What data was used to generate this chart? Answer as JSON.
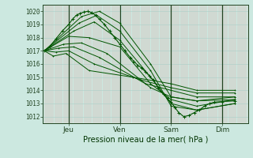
{
  "xlabel": "Pression niveau de la mer( hPa )",
  "ylim": [
    1011.5,
    1020.5
  ],
  "yticks": [
    1012,
    1013,
    1014,
    1015,
    1016,
    1017,
    1018,
    1019,
    1020
  ],
  "day_labels": [
    "Jeu",
    "Ven",
    "Sam",
    "Dim"
  ],
  "day_ticks": [
    1,
    3,
    5,
    7
  ],
  "xlim": [
    0,
    8
  ],
  "bg_color": "#cce8e0",
  "line_color": "#005500",
  "lines": [
    {
      "x": [
        0.05,
        1.5,
        2.2,
        3.0,
        4.2,
        5.0,
        6.0,
        7.5
      ],
      "y": [
        1017.0,
        1019.6,
        1020.0,
        1019.1,
        1016.0,
        1013.5,
        1013.2,
        1013.3
      ]
    },
    {
      "x": [
        0.05,
        1.4,
        2.1,
        3.0,
        4.2,
        5.0,
        6.0,
        7.5
      ],
      "y": [
        1017.0,
        1019.1,
        1019.7,
        1018.5,
        1015.5,
        1012.8,
        1012.5,
        1013.0
      ]
    },
    {
      "x": [
        0.05,
        1.2,
        2.0,
        3.0,
        4.2,
        5.0,
        6.0,
        7.5
      ],
      "y": [
        1017.0,
        1018.5,
        1019.2,
        1017.8,
        1015.0,
        1013.0,
        1012.5,
        1013.0
      ]
    },
    {
      "x": [
        0.05,
        1.0,
        1.8,
        3.0,
        4.2,
        5.0,
        6.0,
        7.5
      ],
      "y": [
        1017.0,
        1018.1,
        1018.0,
        1017.3,
        1014.5,
        1013.3,
        1012.8,
        1013.3
      ]
    },
    {
      "x": [
        0.05,
        0.8,
        1.5,
        2.5,
        4.2,
        5.0,
        6.0,
        7.5
      ],
      "y": [
        1017.0,
        1017.5,
        1017.6,
        1016.8,
        1014.2,
        1013.5,
        1013.2,
        1013.5
      ]
    },
    {
      "x": [
        0.05,
        0.6,
        1.2,
        2.2,
        4.0,
        5.0,
        6.0,
        7.5
      ],
      "y": [
        1017.0,
        1017.2,
        1017.3,
        1016.5,
        1014.5,
        1014.0,
        1013.5,
        1013.5
      ]
    },
    {
      "x": [
        0.05,
        0.5,
        1.0,
        2.0,
        3.8,
        5.0,
        6.0,
        7.5
      ],
      "y": [
        1017.0,
        1016.9,
        1017.0,
        1016.0,
        1014.8,
        1014.2,
        1013.8,
        1013.8
      ]
    },
    {
      "x": [
        0.05,
        0.4,
        0.9,
        1.8,
        3.5,
        5.0,
        6.0,
        7.5
      ],
      "y": [
        1017.0,
        1016.6,
        1016.8,
        1015.5,
        1015.0,
        1014.5,
        1014.0,
        1014.0
      ]
    }
  ],
  "detail_line": {
    "x": [
      0.05,
      0.25,
      0.5,
      0.75,
      1.0,
      1.15,
      1.3,
      1.45,
      1.6,
      1.75,
      1.9,
      2.05,
      2.2,
      2.4,
      2.6,
      2.8,
      3.0,
      3.2,
      3.4,
      3.55,
      3.7,
      3.85,
      4.0,
      4.15,
      4.3,
      4.5,
      4.7,
      4.85,
      5.0,
      5.15,
      5.3,
      5.5,
      5.7,
      5.9,
      6.1,
      6.3,
      6.5,
      6.7,
      7.0,
      7.5
    ],
    "y": [
      1017.0,
      1017.3,
      1017.9,
      1018.5,
      1019.0,
      1019.4,
      1019.7,
      1019.85,
      1019.95,
      1020.0,
      1019.9,
      1019.7,
      1019.4,
      1019.0,
      1018.5,
      1018.0,
      1017.5,
      1017.0,
      1016.5,
      1016.2,
      1015.9,
      1015.7,
      1015.4,
      1015.1,
      1014.8,
      1014.2,
      1013.7,
      1013.4,
      1013.1,
      1012.7,
      1012.3,
      1012.0,
      1012.1,
      1012.3,
      1012.5,
      1012.8,
      1013.0,
      1013.1,
      1013.15,
      1013.2
    ]
  },
  "vgrid_color": "#e0a0a0",
  "hgrid_color": "#aad0c8",
  "sep_color": "#224422",
  "tick_label_color": "#003300",
  "label_color": "#003300"
}
